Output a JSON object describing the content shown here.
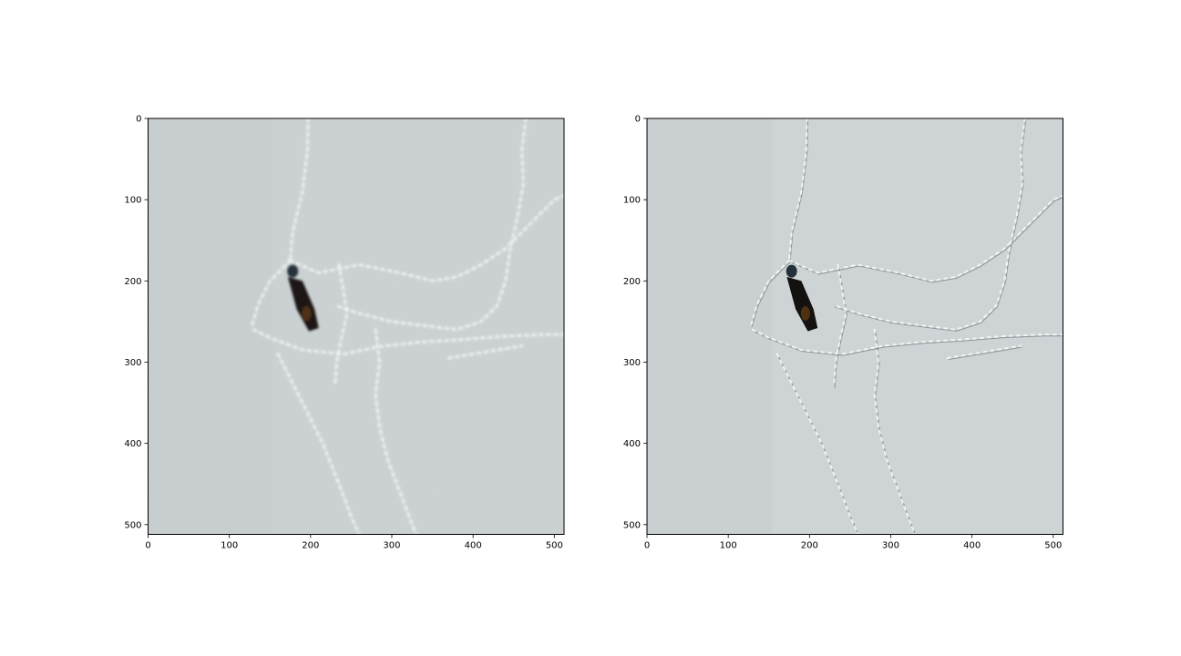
{
  "chart_data": [
    {
      "type": "image",
      "panel": "left",
      "image_content": "snow with animal tracks and a dark object near the center-left",
      "x_range": [
        0,
        512
      ],
      "y_range": [
        0,
        512
      ],
      "y_inverted": true,
      "xticks": [
        0,
        100,
        200,
        300,
        400,
        500
      ],
      "yticks": [
        0,
        100,
        200,
        300,
        400,
        500
      ],
      "grid": false,
      "colors": {
        "snow": "#ccd2d4",
        "track_light": "#eef2f3",
        "object": "#1a1714"
      }
    },
    {
      "type": "image",
      "panel": "right",
      "image_content": "same snow scene, sharpened, with darker track edges",
      "x_range": [
        0,
        512
      ],
      "y_range": [
        0,
        512
      ],
      "y_inverted": true,
      "xticks": [
        0,
        100,
        200,
        300,
        400,
        500
      ],
      "yticks": [
        0,
        100,
        200,
        300,
        400,
        500
      ],
      "grid": false,
      "colors": {
        "snow": "#cfd5d7",
        "track_light": "#f2f5f6",
        "track_dark": "#5a6266",
        "object": "#141210"
      }
    }
  ]
}
